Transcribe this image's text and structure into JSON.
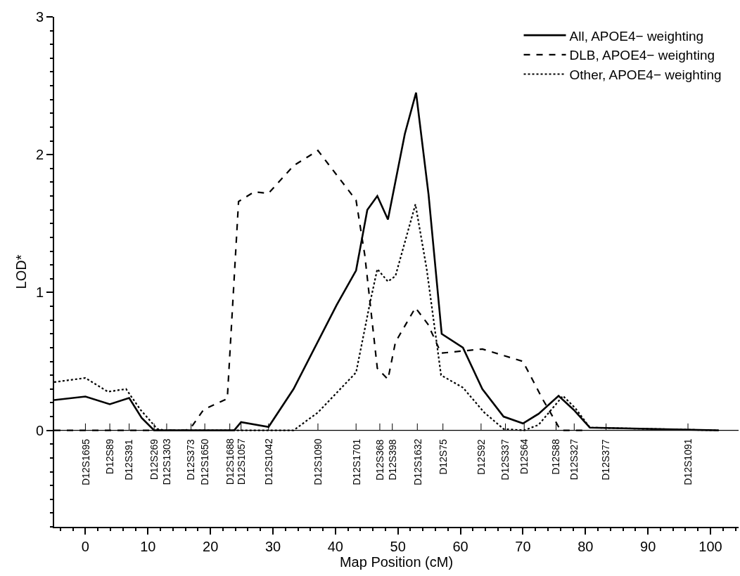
{
  "chart_data": {
    "type": "line",
    "xlabel": "Map Position (cM)",
    "ylabel": "LOD*",
    "xlim": [
      -5,
      104.5
    ],
    "ylim": [
      -0.7,
      3
    ],
    "xticks": [
      0,
      10,
      20,
      30,
      40,
      50,
      60,
      70,
      80,
      90,
      100
    ],
    "yticks": [
      0,
      1,
      2,
      3
    ],
    "legend": "top right",
    "marker": "none",
    "ref_lines": [
      {
        "axis": "y",
        "value": 0
      }
    ],
    "series": [
      {
        "name": "All, APOE4− weighting",
        "color": "#000000",
        "line_style": "solid",
        "x": [
          -5,
          0,
          3.9,
          7,
          9,
          11,
          23.8,
          24.9,
          29.3,
          33.3,
          40.2,
          43.3,
          45.1,
          46.7,
          48.4,
          51.1,
          52.9,
          54.9,
          57.0,
          60.4,
          63.5,
          66.9,
          70.0,
          72.5,
          75.7,
          78.1,
          80.7,
          101.3
        ],
        "values": [
          0.22,
          0.245,
          0.19,
          0.235,
          0.09,
          0,
          0,
          0.06,
          0.025,
          0.3,
          0.91,
          1.16,
          1.6,
          1.7,
          1.53,
          2.15,
          2.45,
          1.71,
          0.7,
          0.6,
          0.3,
          0.1,
          0.05,
          0.12,
          0.25,
          0.15,
          0.02,
          0
        ]
      },
      {
        "name": "DLB, APOE4− weighting",
        "color": "#000000",
        "line_style": "dashed",
        "x": [
          -5,
          16,
          16.9,
          18.9,
          22.7,
          24.5,
          27.0,
          29.3,
          33.3,
          37.2,
          43.3,
          44.7,
          46.7,
          48.4,
          49.6,
          52.8,
          54.8,
          56.9,
          63.5,
          66.4,
          70.0,
          73.1,
          75.4,
          76.0,
          80.5
        ],
        "values": [
          0,
          0,
          0.02,
          0.15,
          0.23,
          1.66,
          1.73,
          1.72,
          1.92,
          2.03,
          1.67,
          1.27,
          0.45,
          0.37,
          0.64,
          0.89,
          0.77,
          0.56,
          0.59,
          0.55,
          0.5,
          0.23,
          0.05,
          0,
          0
        ]
      },
      {
        "name": "Other, APOE4− weighting",
        "color": "#000000",
        "line_style": "dotted",
        "x": [
          -5,
          0,
          3.6,
          6.5,
          8.8,
          11.5,
          12.8,
          33.3,
          37.2,
          43.3,
          45.6,
          46.7,
          48.4,
          49.6,
          52.8,
          54.6,
          56.9,
          60.4,
          63.8,
          66.9,
          70.2,
          72.5,
          76.4,
          78.4,
          80.7,
          101.3
        ],
        "values": [
          0.35,
          0.38,
          0.28,
          0.3,
          0.15,
          0.01,
          0,
          0,
          0.13,
          0.42,
          0.94,
          1.17,
          1.08,
          1.12,
          1.64,
          1.17,
          0.4,
          0.31,
          0.13,
          0.01,
          0,
          0.04,
          0.25,
          0.16,
          0.02,
          0
        ]
      }
    ],
    "annotations": [
      {
        "text": "D12S1695",
        "x": 0,
        "y": 0
      },
      {
        "text": "D12S89",
        "x": 3.9,
        "y": 0
      },
      {
        "text": "D12S391",
        "x": 7.0,
        "y": 0
      },
      {
        "text": "D12S269",
        "x": 11.0,
        "y": 0
      },
      {
        "text": "D12S1303",
        "x": 13.0,
        "y": 0
      },
      {
        "text": "D12S373",
        "x": 16.9,
        "y": 0
      },
      {
        "text": "D12S1650",
        "x": 19.1,
        "y": 0
      },
      {
        "text": "D12S1688",
        "x": 23.1,
        "y": 0
      },
      {
        "text": "D12S1057",
        "x": 24.9,
        "y": 0
      },
      {
        "text": "D12S1042",
        "x": 29.3,
        "y": 0
      },
      {
        "text": "D12S1090",
        "x": 37.2,
        "y": 0
      },
      {
        "text": "D12S1701",
        "x": 43.3,
        "y": 0
      },
      {
        "text": "D12S368",
        "x": 47.1,
        "y": 0
      },
      {
        "text": "D12S398",
        "x": 49.1,
        "y": 0
      },
      {
        "text": "D12S1632",
        "x": 53.1,
        "y": 0
      },
      {
        "text": "D12S75",
        "x": 57.2,
        "y": 0
      },
      {
        "text": "D12S92",
        "x": 63.3,
        "y": 0
      },
      {
        "text": "D12S337",
        "x": 67.2,
        "y": 0
      },
      {
        "text": "D12S64",
        "x": 70.2,
        "y": 0
      },
      {
        "text": "D12S88",
        "x": 75.3,
        "y": 0
      },
      {
        "text": "D12S327",
        "x": 78.2,
        "y": 0
      },
      {
        "text": "D12S377",
        "x": 83.3,
        "y": 0
      },
      {
        "text": "D12S1091",
        "x": 96.4,
        "y": 0
      }
    ]
  }
}
